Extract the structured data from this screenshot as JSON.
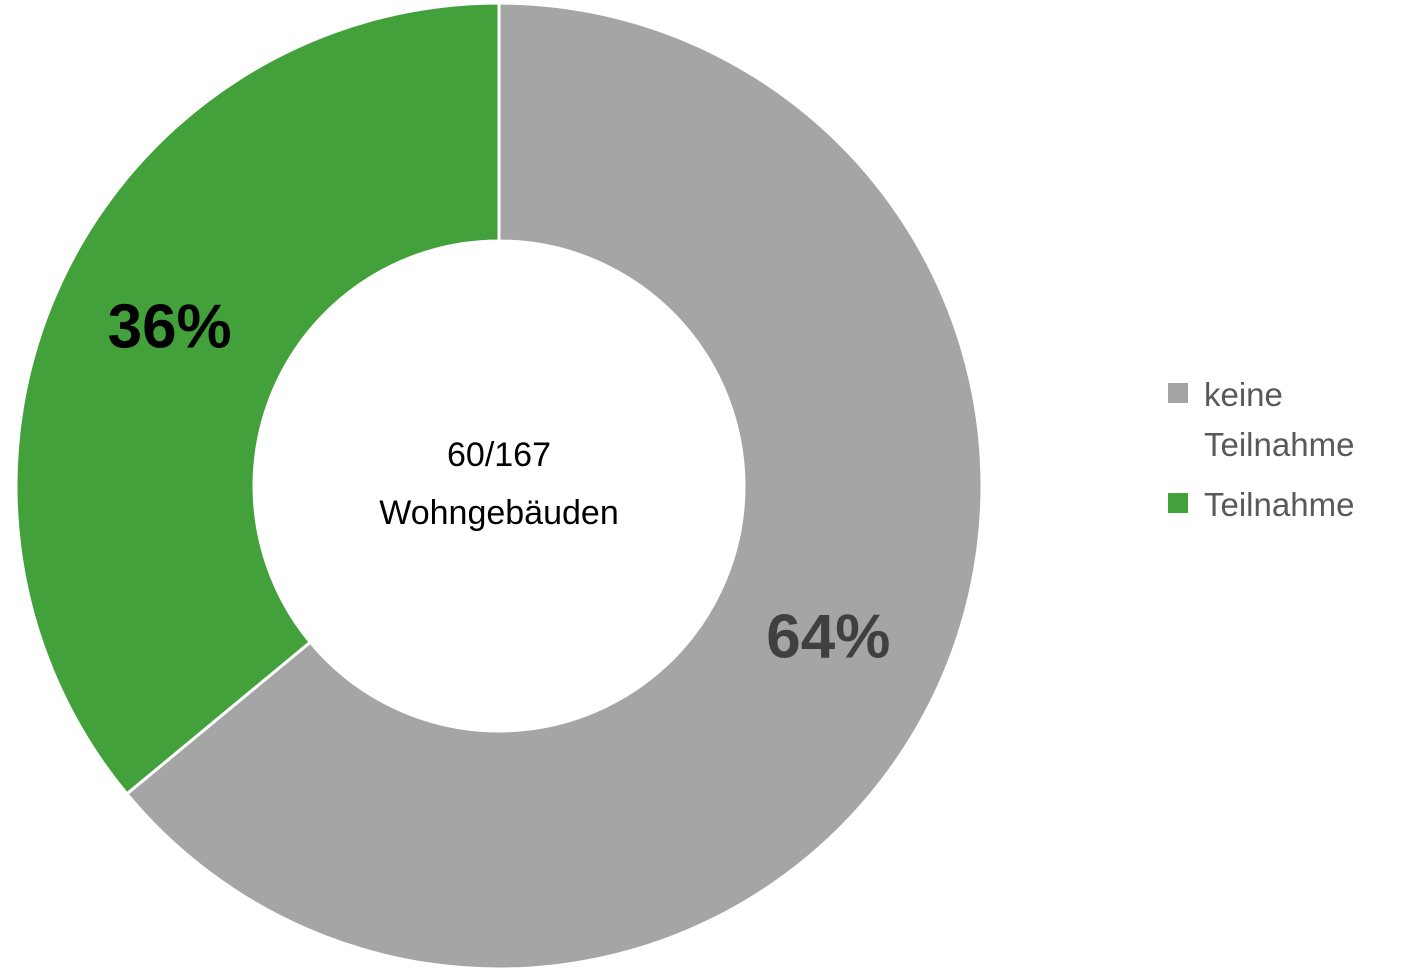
{
  "chart_data": {
    "type": "donut",
    "categories": [
      "keine Teilnahme",
      "Teilnahme"
    ],
    "values": [
      64,
      36
    ],
    "value_labels": [
      "64%",
      "36%"
    ],
    "colors": [
      "#a5a5a5",
      "#43a13c"
    ],
    "label_colors": [
      "#404040",
      "#000000"
    ],
    "center_text": [
      "60/167",
      "Wohngebäuden"
    ],
    "legend": "right"
  }
}
